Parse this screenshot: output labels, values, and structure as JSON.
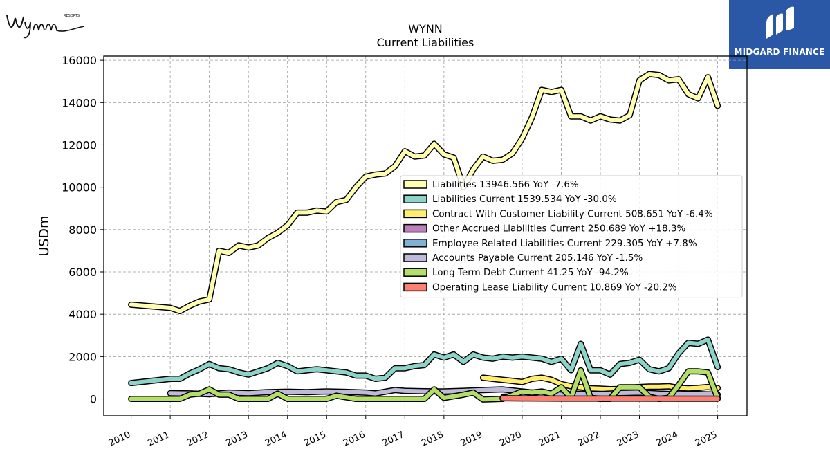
{
  "header": {
    "left_logo_text": "Wynn",
    "left_logo_subtext": "RESORTS",
    "right_logo_text": "MIDGARD FINANCE"
  },
  "chart_data": {
    "type": "line",
    "title": "WYNN",
    "subtitle": "Current  Liabilities",
    "ylabel": "USDm",
    "xlabel": "",
    "ylim": [
      -800,
      16200
    ],
    "xlim": [
      2009.3,
      2025.75
    ],
    "yticks": [
      0,
      2000,
      4000,
      6000,
      8000,
      10000,
      12000,
      14000,
      16000
    ],
    "xticks": [
      2010,
      2011,
      2012,
      2013,
      2014,
      2015,
      2016,
      2017,
      2018,
      2019,
      2020,
      2021,
      2022,
      2023,
      2024,
      2025
    ],
    "grid": true,
    "legend_position": "center-right",
    "legend": [
      {
        "label": "Liabilities  13946.566 YoY -7.6%",
        "color": "#ffffb3"
      },
      {
        "label": "Liabilities Current  1539.534 YoY -30.0%",
        "color": "#8dd3c7"
      },
      {
        "label": "Contract With Customer Liability Current  508.651 YoY -6.4%",
        "color": "#ffed6f"
      },
      {
        "label": "Other Accrued Liabilities Current  250.689 YoY +18.3%",
        "color": "#bc80bd"
      },
      {
        "label": "Employee Related Liabilities Current  229.305 YoY +7.8%",
        "color": "#80b1d3"
      },
      {
        "label": "Accounts Payable Current  205.146 YoY -1.5%",
        "color": "#bebada"
      },
      {
        "label": "Long Term Debt Current  41.25 YoY -94.2%",
        "color": "#b3de69"
      },
      {
        "label": "Operating Lease Liability Current  10.869 YoY -20.2%",
        "color": "#fb8072"
      }
    ],
    "series": [
      {
        "name": "Liabilities",
        "color": "#ffffb3",
        "width": 6,
        "points": [
          [
            2010,
            4450
          ],
          [
            2011,
            4300
          ],
          [
            2011.25,
            4150
          ],
          [
            2011.5,
            4400
          ],
          [
            2011.75,
            4600
          ],
          [
            2012,
            4700
          ],
          [
            2012.25,
            7000
          ],
          [
            2012.5,
            6900
          ],
          [
            2012.75,
            7250
          ],
          [
            2013,
            7150
          ],
          [
            2013.25,
            7250
          ],
          [
            2013.5,
            7600
          ],
          [
            2013.75,
            7850
          ],
          [
            2014,
            8200
          ],
          [
            2014.25,
            8800
          ],
          [
            2014.5,
            8800
          ],
          [
            2014.75,
            8900
          ],
          [
            2015,
            8850
          ],
          [
            2015.25,
            9300
          ],
          [
            2015.5,
            9400
          ],
          [
            2015.75,
            10000
          ],
          [
            2016,
            10500
          ],
          [
            2016.25,
            10600
          ],
          [
            2016.5,
            10650
          ],
          [
            2016.75,
            11000
          ],
          [
            2017,
            11700
          ],
          [
            2017.25,
            11450
          ],
          [
            2017.5,
            11500
          ],
          [
            2017.75,
            12050
          ],
          [
            2018,
            11550
          ],
          [
            2018.25,
            11400
          ],
          [
            2018.5,
            10000
          ],
          [
            2018.75,
            10850
          ],
          [
            2019,
            11450
          ],
          [
            2019.25,
            11250
          ],
          [
            2019.5,
            11300
          ],
          [
            2019.75,
            11600
          ],
          [
            2020,
            12300
          ],
          [
            2020.25,
            13300
          ],
          [
            2020.5,
            14600
          ],
          [
            2020.75,
            14500
          ],
          [
            2021,
            14600
          ],
          [
            2021.25,
            13350
          ],
          [
            2021.5,
            13350
          ],
          [
            2021.75,
            13150
          ],
          [
            2022,
            13350
          ],
          [
            2022.25,
            13200
          ],
          [
            2022.5,
            13150
          ],
          [
            2022.75,
            13400
          ],
          [
            2023,
            15050
          ],
          [
            2023.25,
            15350
          ],
          [
            2023.5,
            15300
          ],
          [
            2023.75,
            15050
          ],
          [
            2024,
            15100
          ],
          [
            2024.25,
            14400
          ],
          [
            2024.5,
            14200
          ],
          [
            2024.75,
            15200
          ],
          [
            2025,
            13850
          ]
        ]
      },
      {
        "name": "Liabilities Current",
        "color": "#8dd3c7",
        "width": 6,
        "points": [
          [
            2010,
            750
          ],
          [
            2011,
            950
          ],
          [
            2011.25,
            950
          ],
          [
            2011.5,
            1200
          ],
          [
            2011.75,
            1400
          ],
          [
            2012,
            1650
          ],
          [
            2012.25,
            1450
          ],
          [
            2012.5,
            1400
          ],
          [
            2012.75,
            1250
          ],
          [
            2013,
            1150
          ],
          [
            2013.25,
            1300
          ],
          [
            2013.5,
            1450
          ],
          [
            2013.75,
            1700
          ],
          [
            2014,
            1550
          ],
          [
            2014.25,
            1300
          ],
          [
            2014.5,
            1350
          ],
          [
            2014.75,
            1400
          ],
          [
            2015,
            1350
          ],
          [
            2015.25,
            1300
          ],
          [
            2015.5,
            1250
          ],
          [
            2015.75,
            1100
          ],
          [
            2016,
            1100
          ],
          [
            2016.25,
            950
          ],
          [
            2016.5,
            1000
          ],
          [
            2016.75,
            1450
          ],
          [
            2017,
            1450
          ],
          [
            2017.25,
            1550
          ],
          [
            2017.5,
            1600
          ],
          [
            2017.75,
            2100
          ],
          [
            2018,
            1950
          ],
          [
            2018.25,
            2100
          ],
          [
            2018.5,
            1750
          ],
          [
            2018.75,
            2100
          ],
          [
            2019,
            1950
          ],
          [
            2019.25,
            1900
          ],
          [
            2019.5,
            2000
          ],
          [
            2019.75,
            1950
          ],
          [
            2020,
            2000
          ],
          [
            2020.25,
            1950
          ],
          [
            2020.5,
            1900
          ],
          [
            2020.75,
            1750
          ],
          [
            2021,
            1900
          ],
          [
            2021.25,
            1350
          ],
          [
            2021.5,
            2600
          ],
          [
            2021.75,
            1350
          ],
          [
            2022,
            1350
          ],
          [
            2022.25,
            1150
          ],
          [
            2022.5,
            1650
          ],
          [
            2022.75,
            1700
          ],
          [
            2023,
            1850
          ],
          [
            2023.25,
            1400
          ],
          [
            2023.5,
            1300
          ],
          [
            2023.75,
            1450
          ],
          [
            2024,
            2150
          ],
          [
            2024.25,
            2650
          ],
          [
            2024.5,
            2600
          ],
          [
            2024.75,
            2800
          ],
          [
            2025,
            1500
          ]
        ]
      },
      {
        "name": "Contract With Customer Liability Current",
        "color": "#ffed6f",
        "width": 6,
        "points": [
          [
            2019,
            1000
          ],
          [
            2019.25,
            950
          ],
          [
            2019.5,
            900
          ],
          [
            2019.75,
            850
          ],
          [
            2020,
            800
          ],
          [
            2020.25,
            950
          ],
          [
            2020.5,
            1000
          ],
          [
            2020.75,
            900
          ],
          [
            2021,
            700
          ],
          [
            2021.25,
            600
          ],
          [
            2021.5,
            550
          ],
          [
            2021.75,
            500
          ],
          [
            2022,
            480
          ],
          [
            2022.25,
            460
          ],
          [
            2022.5,
            470
          ],
          [
            2022.75,
            520
          ],
          [
            2023,
            560
          ],
          [
            2023.25,
            580
          ],
          [
            2023.5,
            580
          ],
          [
            2023.75,
            600
          ],
          [
            2024,
            520
          ],
          [
            2024.25,
            500
          ],
          [
            2024.5,
            520
          ],
          [
            2024.75,
            560
          ],
          [
            2025,
            510
          ]
        ]
      },
      {
        "name": "Other Accrued Liabilities Current",
        "color": "#bc80bd",
        "width": 3,
        "points": [
          [
            2019.5,
            150
          ],
          [
            2020,
            180
          ],
          [
            2020.5,
            200
          ],
          [
            2021,
            170
          ],
          [
            2021.5,
            190
          ],
          [
            2022,
            200
          ],
          [
            2022.5,
            210
          ],
          [
            2023,
            220
          ],
          [
            2023.5,
            230
          ],
          [
            2024,
            210
          ],
          [
            2024.5,
            240
          ],
          [
            2025,
            250
          ]
        ]
      },
      {
        "name": "Employee Related Liabilities Current",
        "color": "#80b1d3",
        "width": 3,
        "points": [
          [
            2019.5,
            120
          ],
          [
            2020,
            160
          ],
          [
            2020.5,
            180
          ],
          [
            2021,
            150
          ],
          [
            2021.5,
            170
          ],
          [
            2022,
            190
          ],
          [
            2022.5,
            200
          ],
          [
            2023,
            210
          ],
          [
            2023.5,
            215
          ],
          [
            2024,
            212
          ],
          [
            2024.5,
            220
          ],
          [
            2025,
            229
          ]
        ]
      },
      {
        "name": "Accounts Payable Current",
        "color": "#bebada",
        "width": 6,
        "points": [
          [
            2011,
            270
          ],
          [
            2011.5,
            260
          ],
          [
            2012,
            220
          ],
          [
            2012.5,
            300
          ],
          [
            2013,
            270
          ],
          [
            2013.5,
            320
          ],
          [
            2014,
            340
          ],
          [
            2014.5,
            320
          ],
          [
            2015,
            350
          ],
          [
            2015.5,
            330
          ],
          [
            2016,
            300
          ],
          [
            2016.25,
            260
          ],
          [
            2016.75,
            420
          ],
          [
            2017,
            380
          ],
          [
            2017.5,
            360
          ],
          [
            2018,
            350
          ],
          [
            2018.5,
            380
          ],
          [
            2019,
            420
          ],
          [
            2019.5,
            450
          ],
          [
            2020,
            350
          ],
          [
            2020.5,
            250
          ],
          [
            2021,
            200
          ],
          [
            2021.5,
            250
          ],
          [
            2022,
            230
          ],
          [
            2022.5,
            280
          ],
          [
            2023,
            300
          ],
          [
            2023.5,
            250
          ],
          [
            2024,
            220
          ],
          [
            2024.5,
            230
          ],
          [
            2025,
            205
          ]
        ]
      },
      {
        "name": "Long Term Debt Current",
        "color": "#b3de69",
        "width": 6,
        "points": [
          [
            2010,
            0
          ],
          [
            2011,
            0
          ],
          [
            2011.25,
            0
          ],
          [
            2011.5,
            200
          ],
          [
            2011.75,
            250
          ],
          [
            2012,
            450
          ],
          [
            2012.25,
            200
          ],
          [
            2012.5,
            200
          ],
          [
            2012.75,
            0
          ],
          [
            2013,
            0
          ],
          [
            2013.5,
            0
          ],
          [
            2013.75,
            250
          ],
          [
            2014,
            0
          ],
          [
            2014.5,
            0
          ],
          [
            2015,
            0
          ],
          [
            2015.25,
            150
          ],
          [
            2015.75,
            0
          ],
          [
            2016,
            0
          ],
          [
            2017,
            0
          ],
          [
            2017.5,
            0
          ],
          [
            2017.75,
            450
          ],
          [
            2018,
            50
          ],
          [
            2018.5,
            200
          ],
          [
            2018.75,
            300
          ],
          [
            2019,
            -30
          ],
          [
            2019.5,
            0
          ],
          [
            2020,
            350
          ],
          [
            2020.25,
            300
          ],
          [
            2020.5,
            350
          ],
          [
            2020.75,
            250
          ],
          [
            2021,
            550
          ],
          [
            2021.25,
            50
          ],
          [
            2021.5,
            1350
          ],
          [
            2021.75,
            50
          ],
          [
            2022,
            0
          ],
          [
            2022.25,
            0
          ],
          [
            2022.5,
            550
          ],
          [
            2022.75,
            550
          ],
          [
            2023,
            550
          ],
          [
            2023.25,
            100
          ],
          [
            2023.5,
            0
          ],
          [
            2023.75,
            50
          ],
          [
            2024,
            650
          ],
          [
            2024.25,
            1300
          ],
          [
            2024.5,
            1300
          ],
          [
            2024.75,
            1250
          ],
          [
            2025,
            40
          ]
        ]
      },
      {
        "name": "Operating Lease Liability Current",
        "color": "#fb8072",
        "width": 6,
        "points": [
          [
            2019.5,
            30
          ],
          [
            2020,
            20
          ],
          [
            2021,
            15
          ],
          [
            2022,
            14
          ],
          [
            2023,
            13
          ],
          [
            2024,
            12
          ],
          [
            2025,
            11
          ]
        ]
      }
    ]
  }
}
